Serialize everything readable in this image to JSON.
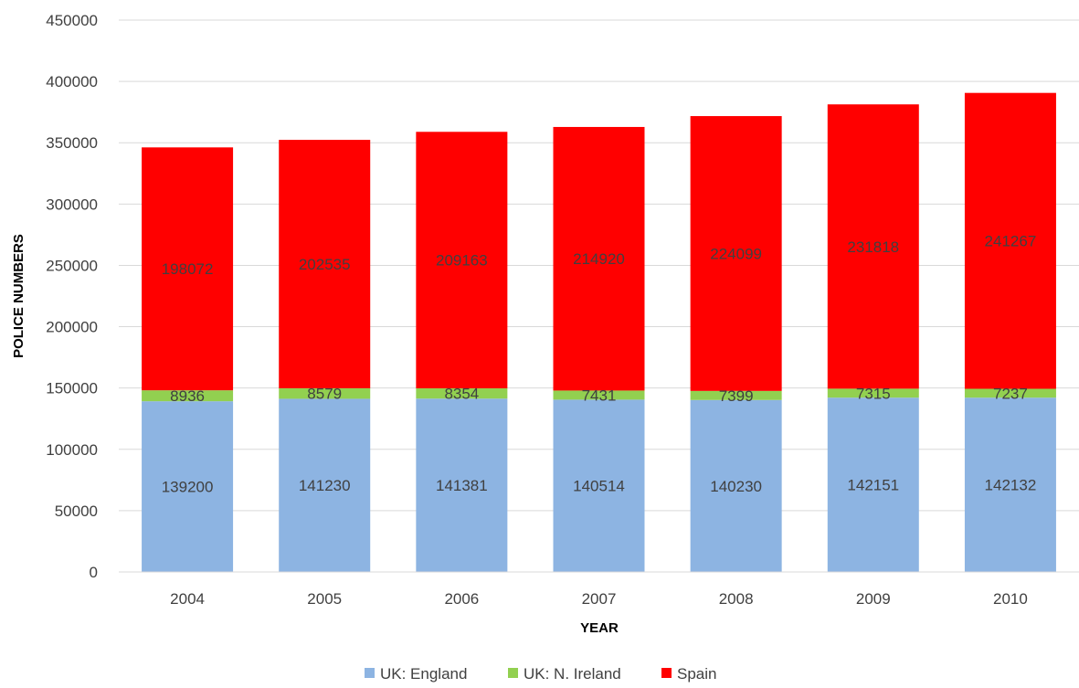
{
  "chart_data": {
    "type": "bar",
    "stacked": true,
    "title": "",
    "xlabel": "YEAR",
    "ylabel": "POLICE NUMBERS",
    "categories": [
      "2004",
      "2005",
      "2006",
      "2007",
      "2008",
      "2009",
      "2010"
    ],
    "series": [
      {
        "name": "UK: England",
        "color": "#8DB4E2",
        "values": [
          139200,
          141230,
          141381,
          140514,
          140230,
          142151,
          142132
        ]
      },
      {
        "name": "UK: N. Ireland",
        "color": "#92D050",
        "values": [
          8936,
          8579,
          8354,
          7431,
          7399,
          7315,
          7237
        ]
      },
      {
        "name": "Spain",
        "color": "#FF0000",
        "values": [
          198072,
          202535,
          209163,
          214920,
          224099,
          231818,
          241267
        ]
      }
    ],
    "ylim": [
      0,
      450000
    ],
    "yticks": [
      0,
      50000,
      100000,
      150000,
      200000,
      250000,
      300000,
      350000,
      400000,
      450000
    ],
    "grid": true,
    "legend_position": "bottom",
    "data_labels": true
  }
}
